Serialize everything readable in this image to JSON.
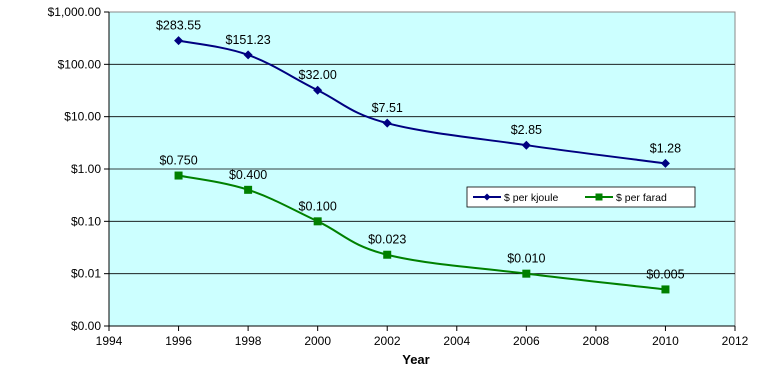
{
  "chart_data": {
    "type": "line",
    "title": "",
    "xlabel": "Year",
    "ylabel": "",
    "y_scale": "log",
    "xlim": [
      1994,
      2012
    ],
    "ylim": [
      0.001,
      1000
    ],
    "x_ticks": [
      1994,
      1996,
      1998,
      2000,
      2002,
      2004,
      2006,
      2008,
      2010,
      2012
    ],
    "x_tick_labels": [
      "1994",
      "1996",
      "1998",
      "2000",
      "2002",
      "2004",
      "2006",
      "2008",
      "2010",
      "2012"
    ],
    "y_ticks": [
      0.001,
      0.01,
      0.1,
      1,
      10,
      100,
      1000
    ],
    "y_tick_labels": [
      "$0.00",
      "$0.01",
      "$0.10",
      "$1.00",
      "$10.00",
      "$100.00",
      "$1,000.00"
    ],
    "grid": "horizontal",
    "plot_background": "#ccffff",
    "legend_position": "right-middle",
    "series": [
      {
        "name": "$ per kjoule",
        "color": "#000080",
        "marker": "diamond",
        "x": [
          1996,
          1998,
          2000,
          2002,
          2006,
          2010
        ],
        "y": [
          283.55,
          151.23,
          32.0,
          7.51,
          2.85,
          1.28
        ],
        "labels": [
          "$283.55",
          "$151.23",
          "$32.00",
          "$7.51",
          "$2.85",
          "$1.28"
        ]
      },
      {
        "name": "$ per farad",
        "color": "#008000",
        "marker": "square",
        "x": [
          1996,
          1998,
          2000,
          2002,
          2006,
          2010
        ],
        "y": [
          0.75,
          0.4,
          0.1,
          0.023,
          0.01,
          0.005
        ],
        "labels": [
          "$0.750",
          "$0.400",
          "$0.100",
          "$0.023",
          "$0.010",
          "$0.005"
        ]
      }
    ]
  }
}
